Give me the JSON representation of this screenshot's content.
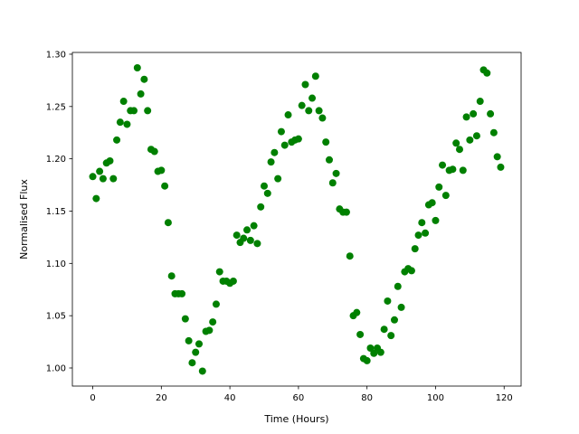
{
  "chart_data": {
    "type": "scatter",
    "xlabel": "Time (Hours)",
    "ylabel": "Normalised Flux",
    "color": "#008000",
    "x": [
      0,
      1,
      2,
      3,
      4,
      5,
      6,
      7,
      8,
      9,
      10,
      11,
      12,
      13,
      14,
      15,
      16,
      17,
      18,
      19,
      20,
      21,
      22,
      23,
      24,
      25,
      26,
      27,
      28,
      29,
      30,
      31,
      32,
      33,
      34,
      35,
      36,
      37,
      38,
      39,
      40,
      41,
      42,
      43,
      44,
      45,
      46,
      47,
      48,
      49,
      50,
      51,
      52,
      53,
      54,
      55,
      56,
      57,
      58,
      59,
      60,
      61,
      62,
      63,
      64,
      65,
      66,
      67,
      68,
      69,
      70,
      71,
      72,
      73,
      74,
      75,
      76,
      77,
      78,
      79,
      80,
      81,
      82,
      83,
      84,
      85,
      86,
      87,
      88,
      89,
      90,
      91,
      92,
      93,
      94,
      95,
      96,
      97,
      98,
      99,
      100,
      101,
      102,
      103,
      104,
      105,
      106,
      107,
      108,
      109,
      110,
      111,
      112,
      113,
      114,
      115,
      116,
      117,
      118,
      119
    ],
    "values": [
      1.183,
      1.162,
      1.188,
      1.181,
      1.196,
      1.198,
      1.181,
      1.218,
      1.235,
      1.255,
      1.233,
      1.246,
      1.246,
      1.287,
      1.262,
      1.276,
      1.246,
      1.209,
      1.207,
      1.188,
      1.189,
      1.174,
      1.139,
      1.088,
      1.071,
      1.071,
      1.071,
      1.047,
      1.026,
      1.005,
      1.015,
      1.023,
      0.997,
      1.035,
      1.036,
      1.044,
      1.061,
      1.092,
      1.083,
      1.083,
      1.081,
      1.083,
      1.127,
      1.12,
      1.124,
      1.132,
      1.122,
      1.136,
      1.119,
      1.154,
      1.174,
      1.167,
      1.197,
      1.206,
      1.181,
      1.226,
      1.213,
      1.242,
      1.216,
      1.218,
      1.219,
      1.251,
      1.271,
      1.246,
      1.258,
      1.279,
      1.246,
      1.239,
      1.216,
      1.199,
      1.177,
      1.186,
      1.152,
      1.149,
      1.149,
      1.107,
      1.05,
      1.053,
      1.032,
      1.009,
      1.007,
      1.019,
      1.014,
      1.019,
      1.015,
      1.037,
      1.064,
      1.031,
      1.046,
      1.078,
      1.058,
      1.092,
      1.095,
      1.093,
      1.114,
      1.127,
      1.139,
      1.129,
      1.156,
      1.158,
      1.141,
      1.173,
      1.194,
      1.165,
      1.189,
      1.19,
      1.215,
      1.209,
      1.189,
      1.24,
      1.218,
      1.243,
      1.222,
      1.255,
      1.285,
      1.282,
      1.243,
      1.225,
      1.202,
      1.192
    ],
    "xlim": [
      -5.95,
      124.95
    ],
    "ylim": [
      0.9827,
      1.3017
    ],
    "xticks": [
      0,
      20,
      40,
      60,
      80,
      100,
      120
    ],
    "yticks": [
      {
        "value": 1,
        "label": "1.00"
      },
      1.05,
      {
        "value": 1.1,
        "label": "1.10"
      },
      1.15,
      {
        "value": 1.2,
        "label": "1.20"
      },
      1.25,
      {
        "value": 1.3,
        "label": "1.30"
      }
    ]
  }
}
